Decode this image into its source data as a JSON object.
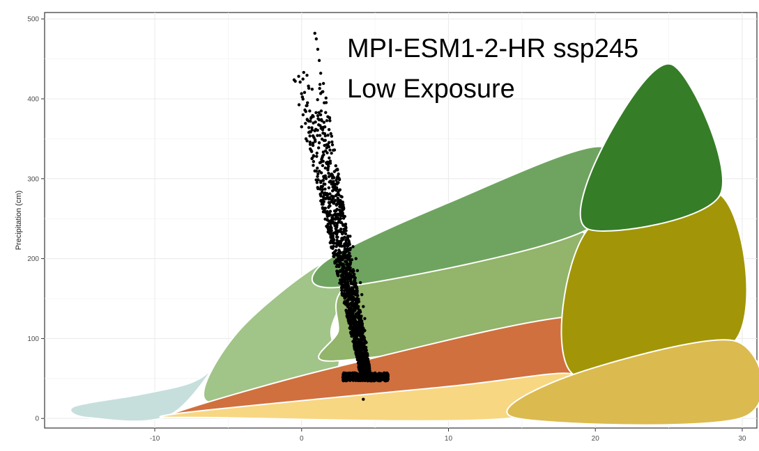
{
  "annotation": {
    "line1": "MPI-ESM1-2-HR ssp245",
    "line2": "Low Exposure"
  },
  "chart_data": {
    "type": "scatter",
    "title": "",
    "xlabel": "",
    "ylabel": "Precipitation (cm)",
    "xlim": [
      -17.5,
      31
    ],
    "ylim": [
      -12,
      508
    ],
    "x_ticks": [
      -10,
      0,
      10,
      20,
      30
    ],
    "y_ticks": [
      0,
      100,
      200,
      300,
      400,
      500
    ],
    "grid": true,
    "background_regions": [
      {
        "color": "#c6dfdd",
        "x": [
          -15.5,
          -11,
          -7.5,
          -5.8,
          -4.4,
          -8.8,
          -14.5
        ],
        "y": [
          15,
          30,
          45,
          68,
          107,
          6,
          1
        ]
      },
      {
        "color": "#a1c488",
        "x": [
          -4.4,
          1.5,
          3,
          2,
          2.5,
          0,
          -6.5
        ],
        "y": [
          107,
          195,
          165,
          110,
          65,
          45,
          22
        ]
      },
      {
        "color": "#92b46b",
        "x": [
          3,
          10,
          19,
          19,
          2.3,
          2.5
        ],
        "y": [
          165,
          225,
          235,
          128,
          72,
          110
        ]
      },
      {
        "color": "#6fa460",
        "x": [
          1.5,
          10,
          20.5,
          19.5,
          3
        ],
        "y": [
          195,
          270,
          340,
          237,
          165
        ]
      },
      {
        "color": "#d0703f",
        "x": [
          -8.8,
          2.5,
          19,
          18.5,
          -5.5
        ],
        "y": [
          6,
          65,
          128,
          55,
          10
        ]
      },
      {
        "color": "#f8d782",
        "x": [
          -8.5,
          10,
          18.5,
          14.5,
          -5.5
        ],
        "y": [
          6,
          40,
          55,
          1,
          1
        ]
      },
      {
        "color": "#a29608",
        "x": [
          19.5,
          28.5,
          29.5,
          18.5
        ],
        "y": [
          237,
          280,
          97,
          55
        ]
      },
      {
        "color": "#dbba4f",
        "x": [
          18.5,
          29.5,
          30,
          14.5
        ],
        "y": [
          55,
          97,
          1,
          1
        ]
      },
      {
        "color": "#367d28",
        "x": [
          20.5,
          25.2,
          28.5,
          19.5
        ],
        "y": [
          340,
          443,
          280,
          237
        ]
      }
    ],
    "series": [
      {
        "note_cluster": "dense vertical band of black points",
        "x_range": [
          -0.2,
          6
        ],
        "y_range": [
          24,
          485
        ],
        "points": [
          [
            0.9,
            482
          ],
          [
            1.0,
            475
          ],
          [
            1.1,
            462
          ],
          [
            1.2,
            448
          ],
          [
            1.3,
            432
          ],
          [
            1.25,
            418
          ],
          [
            -0.1,
            421
          ],
          [
            0.2,
            408
          ],
          [
            0.4,
            395
          ],
          [
            0.1,
            380
          ],
          [
            0.0,
            365
          ],
          [
            0.3,
            350
          ],
          [
            0.6,
            372
          ],
          [
            0.9,
            360
          ],
          [
            1.2,
            345
          ],
          [
            1.5,
            330
          ],
          [
            1.8,
            318
          ],
          [
            2.0,
            305
          ],
          [
            2.2,
            292
          ],
          [
            2.4,
            280
          ],
          [
            2.6,
            268
          ],
          [
            2.8,
            255
          ],
          [
            3.0,
            240
          ],
          [
            3.3,
            228
          ],
          [
            3.5,
            215
          ],
          [
            3.7,
            200
          ],
          [
            3.8,
            185
          ],
          [
            4.0,
            170
          ],
          [
            4.1,
            155
          ],
          [
            4.2,
            140
          ],
          [
            4.3,
            125
          ],
          [
            4.3,
            110
          ],
          [
            4.4,
            95
          ],
          [
            4.4,
            80
          ],
          [
            4.5,
            68
          ],
          [
            4.5,
            58
          ],
          [
            4.6,
            52
          ],
          [
            5.0,
            54
          ],
          [
            5.5,
            53
          ],
          [
            3.5,
            52
          ],
          [
            3.0,
            51
          ],
          [
            4.2,
            24
          ]
        ]
      }
    ]
  }
}
